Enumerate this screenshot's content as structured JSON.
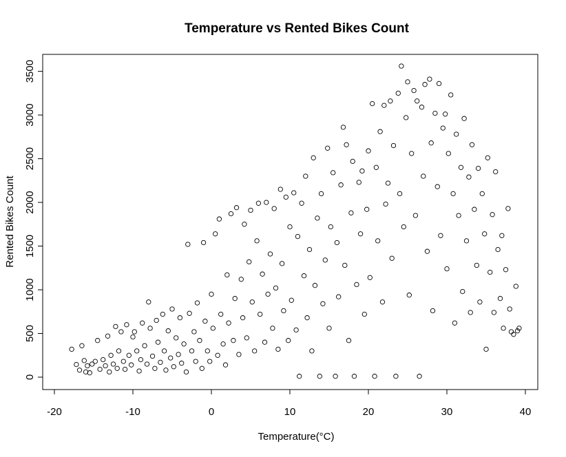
{
  "chart_data": {
    "type": "scatter",
    "title": "Temperature vs Rented Bikes Count",
    "xlabel": "Temperature(°C)",
    "ylabel": "Rented Bikes Count",
    "xlim": [
      -18,
      40
    ],
    "ylim": [
      0,
      3560
    ],
    "x_ticks": [
      -20,
      -10,
      0,
      10,
      20,
      30,
      40
    ],
    "y_ticks": [
      0,
      500,
      1000,
      1500,
      2000,
      2500,
      3000,
      3500
    ],
    "grid": false,
    "legend": "none",
    "marker": "open-circle",
    "point_color": "#000000",
    "points": [
      [
        -17.8,
        320
      ],
      [
        -17.2,
        145
      ],
      [
        -16.8,
        80
      ],
      [
        -16.5,
        360
      ],
      [
        -16.2,
        190
      ],
      [
        -16,
        60
      ],
      [
        -15.8,
        130
      ],
      [
        -15.5,
        50
      ],
      [
        -15.2,
        150
      ],
      [
        -14.8,
        180
      ],
      [
        -14.5,
        420
      ],
      [
        -14.2,
        90
      ],
      [
        -13.8,
        200
      ],
      [
        -13.5,
        130
      ],
      [
        -13.2,
        470
      ],
      [
        -13,
        60
      ],
      [
        -12.8,
        250
      ],
      [
        -12.5,
        150
      ],
      [
        -12.2,
        580
      ],
      [
        -12,
        100
      ],
      [
        -11.8,
        300
      ],
      [
        -11.5,
        520
      ],
      [
        -11.2,
        180
      ],
      [
        -11,
        90
      ],
      [
        -10.8,
        600
      ],
      [
        -10.5,
        250
      ],
      [
        -10.2,
        140
      ],
      [
        -10,
        460
      ],
      [
        -9.8,
        520
      ],
      [
        -9.5,
        300
      ],
      [
        -9.2,
        70
      ],
      [
        -9,
        200
      ],
      [
        -8.8,
        620
      ],
      [
        -8.5,
        360
      ],
      [
        -8.2,
        150
      ],
      [
        -8,
        860
      ],
      [
        -7.8,
        560
      ],
      [
        -7.5,
        240
      ],
      [
        -7.2,
        100
      ],
      [
        -7,
        650
      ],
      [
        -6.8,
        400
      ],
      [
        -6.5,
        170
      ],
      [
        -6.2,
        720
      ],
      [
        -6,
        300
      ],
      [
        -5.8,
        80
      ],
      [
        -5.5,
        530
      ],
      [
        -5.2,
        220
      ],
      [
        -5,
        780
      ],
      [
        -4.8,
        120
      ],
      [
        -4.5,
        450
      ],
      [
        -4.2,
        260
      ],
      [
        -4,
        680
      ],
      [
        -3.8,
        160
      ],
      [
        -3.5,
        380
      ],
      [
        -3.2,
        60
      ],
      [
        -3,
        1520
      ],
      [
        -2.8,
        730
      ],
      [
        -2.5,
        300
      ],
      [
        -2.2,
        520
      ],
      [
        -2,
        180
      ],
      [
        -1.8,
        850
      ],
      [
        -1.5,
        420
      ],
      [
        -1.2,
        100
      ],
      [
        -1,
        1540
      ],
      [
        -0.8,
        640
      ],
      [
        -0.5,
        300
      ],
      [
        -0.2,
        180
      ],
      [
        0,
        950
      ],
      [
        0.2,
        560
      ],
      [
        0.5,
        1640
      ],
      [
        0.8,
        250
      ],
      [
        1,
        1810
      ],
      [
        1.2,
        720
      ],
      [
        1.5,
        380
      ],
      [
        1.8,
        140
      ],
      [
        2,
        1170
      ],
      [
        2.2,
        620
      ],
      [
        2.5,
        1870
      ],
      [
        2.8,
        420
      ],
      [
        3,
        900
      ],
      [
        3.2,
        1940
      ],
      [
        3.5,
        260
      ],
      [
        3.8,
        1120
      ],
      [
        4,
        680
      ],
      [
        4.2,
        1750
      ],
      [
        4.5,
        450
      ],
      [
        4.8,
        1320
      ],
      [
        5,
        1910
      ],
      [
        5.2,
        860
      ],
      [
        5.5,
        300
      ],
      [
        5.8,
        1560
      ],
      [
        6,
        1990
      ],
      [
        6.2,
        720
      ],
      [
        6.5,
        1180
      ],
      [
        6.8,
        400
      ],
      [
        7,
        2000
      ],
      [
        7.2,
        950
      ],
      [
        7.5,
        1410
      ],
      [
        7.8,
        560
      ],
      [
        8,
        1930
      ],
      [
        8.2,
        1020
      ],
      [
        8.5,
        320
      ],
      [
        8.8,
        2150
      ],
      [
        9,
        1300
      ],
      [
        9.2,
        760
      ],
      [
        9.5,
        2060
      ],
      [
        9.8,
        420
      ],
      [
        10,
        1720
      ],
      [
        10.2,
        880
      ],
      [
        10.5,
        2110
      ],
      [
        10.8,
        540
      ],
      [
        11,
        1610
      ],
      [
        11.2,
        10
      ],
      [
        11.5,
        1990
      ],
      [
        11.8,
        1160
      ],
      [
        12,
        2300
      ],
      [
        12.2,
        680
      ],
      [
        12.5,
        1460
      ],
      [
        12.8,
        300
      ],
      [
        13,
        2510
      ],
      [
        13.2,
        1050
      ],
      [
        13.5,
        1820
      ],
      [
        13.8,
        10
      ],
      [
        14,
        2100
      ],
      [
        14.2,
        840
      ],
      [
        14.5,
        1340
      ],
      [
        14.8,
        2620
      ],
      [
        15,
        560
      ],
      [
        15.2,
        1720
      ],
      [
        15.5,
        2340
      ],
      [
        15.8,
        10
      ],
      [
        16,
        1540
      ],
      [
        16.2,
        920
      ],
      [
        16.5,
        2200
      ],
      [
        16.8,
        2860
      ],
      [
        17,
        1280
      ],
      [
        17.2,
        2660
      ],
      [
        17.5,
        420
      ],
      [
        17.8,
        1880
      ],
      [
        18,
        2470
      ],
      [
        18.2,
        10
      ],
      [
        18.5,
        1060
      ],
      [
        18.8,
        2230
      ],
      [
        19,
        1640
      ],
      [
        19.2,
        2360
      ],
      [
        19.5,
        720
      ],
      [
        19.8,
        1920
      ],
      [
        20,
        2590
      ],
      [
        20.2,
        1140
      ],
      [
        20.5,
        3130
      ],
      [
        20.8,
        10
      ],
      [
        21,
        2400
      ],
      [
        21.2,
        1560
      ],
      [
        21.5,
        2810
      ],
      [
        21.8,
        860
      ],
      [
        22,
        3110
      ],
      [
        22.2,
        1980
      ],
      [
        22.5,
        2220
      ],
      [
        22.8,
        3160
      ],
      [
        23,
        1360
      ],
      [
        23.2,
        2650
      ],
      [
        23.5,
        10
      ],
      [
        23.8,
        3250
      ],
      [
        24,
        2100
      ],
      [
        24.2,
        3560
      ],
      [
        24.5,
        1720
      ],
      [
        24.8,
        2970
      ],
      [
        25,
        3380
      ],
      [
        25.2,
        940
      ],
      [
        25.5,
        2560
      ],
      [
        25.8,
        3280
      ],
      [
        26,
        1850
      ],
      [
        26.2,
        3160
      ],
      [
        26.5,
        10
      ],
      [
        26.8,
        3090
      ],
      [
        27,
        2300
      ],
      [
        27.2,
        3350
      ],
      [
        27.5,
        1440
      ],
      [
        27.8,
        3410
      ],
      [
        28,
        2680
      ],
      [
        28.2,
        760
      ],
      [
        28.5,
        3020
      ],
      [
        28.8,
        2180
      ],
      [
        29,
        3360
      ],
      [
        29.2,
        1620
      ],
      [
        29.5,
        2850
      ],
      [
        29.8,
        3010
      ],
      [
        30,
        1240
      ],
      [
        30.2,
        2560
      ],
      [
        30.5,
        3230
      ],
      [
        30.8,
        2100
      ],
      [
        31,
        620
      ],
      [
        31.2,
        2780
      ],
      [
        31.5,
        1850
      ],
      [
        31.8,
        2400
      ],
      [
        32,
        980
      ],
      [
        32.2,
        2960
      ],
      [
        32.5,
        1560
      ],
      [
        32.8,
        2290
      ],
      [
        33,
        740
      ],
      [
        33.2,
        2660
      ],
      [
        33.5,
        1920
      ],
      [
        33.8,
        1280
      ],
      [
        34,
        2390
      ],
      [
        34.2,
        860
      ],
      [
        34.5,
        2100
      ],
      [
        34.8,
        1640
      ],
      [
        35,
        320
      ],
      [
        35.2,
        2510
      ],
      [
        35.5,
        1200
      ],
      [
        35.8,
        1860
      ],
      [
        36,
        740
      ],
      [
        36.2,
        2350
      ],
      [
        36.5,
        1460
      ],
      [
        36.8,
        900
      ],
      [
        37,
        1620
      ],
      [
        37.2,
        560
      ],
      [
        37.5,
        1230
      ],
      [
        37.8,
        1930
      ],
      [
        38,
        780
      ],
      [
        38.2,
        520
      ],
      [
        38.5,
        490
      ],
      [
        38.8,
        1040
      ],
      [
        39,
        530
      ],
      [
        39.2,
        560
      ]
    ]
  }
}
